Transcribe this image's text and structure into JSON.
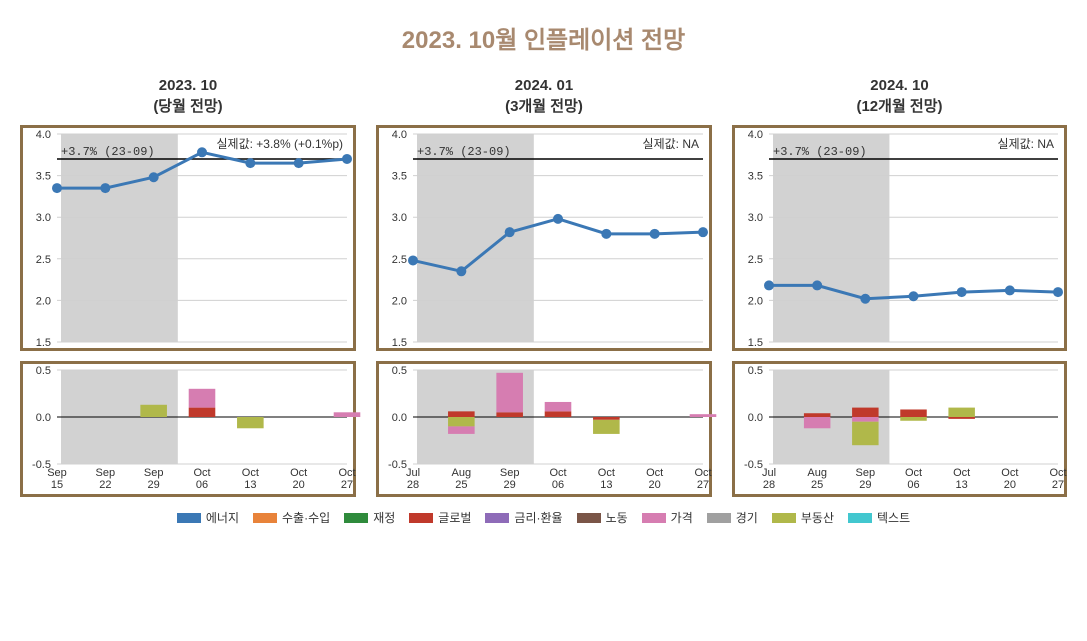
{
  "title": "2023. 10월 인플레이션 전망",
  "legend": [
    {
      "label": "에너지",
      "color": "#3b78b5"
    },
    {
      "label": "수출·수입",
      "color": "#e8833a"
    },
    {
      "label": "재정",
      "color": "#2f8b3c"
    },
    {
      "label": "글로벌",
      "color": "#c0392b"
    },
    {
      "label": "금리·환율",
      "color": "#8e6bb8"
    },
    {
      "label": "노동",
      "color": "#7a5547"
    },
    {
      "label": "가격",
      "color": "#d67db1"
    },
    {
      "label": "경기",
      "color": "#a0a0a0"
    },
    {
      "label": "부동산",
      "color": "#b0b84a"
    },
    {
      "label": "텍스트",
      "color": "#42c7cf"
    }
  ],
  "shaded_color": "#bfbfbf",
  "line_color": "#3b78b5",
  "grid_color": "#d0d0d0",
  "border_color": "#8b6f47",
  "ref_line_label": "+3.7% (23-09)",
  "ref_line_value": 3.7,
  "panels": [
    {
      "header_line1": "2023. 10",
      "header_line2": "(당월 전망)",
      "actual_label": "실제값: +3.8% (+0.1%p)",
      "x_labels": [
        "Sep\n15",
        "Sep\n22",
        "Sep\n29",
        "Oct\n06",
        "Oct\n13",
        "Oct\n20",
        "Oct\n27"
      ],
      "shaded_end_idx": 3,
      "top": {
        "ylim": [
          1.5,
          4.0
        ],
        "yticks": [
          1.5,
          2.0,
          2.5,
          3.0,
          3.5,
          4.0
        ],
        "values": [
          3.35,
          3.35,
          3.48,
          3.78,
          3.65,
          3.65,
          3.7
        ]
      },
      "bottom": {
        "ylim": [
          -0.5,
          0.5
        ],
        "yticks": [
          -0.5,
          0.0,
          0.5
        ],
        "stacks": [
          [],
          [],
          [
            {
              "c": "#b0b84a",
              "v": 0.13
            }
          ],
          [
            {
              "c": "#c0392b",
              "v": 0.1
            },
            {
              "c": "#d67db1",
              "v": 0.2
            }
          ],
          [
            {
              "c": "#b0b84a",
              "v": -0.12
            }
          ],
          [],
          [
            {
              "c": "#d67db1",
              "v": 0.05
            }
          ]
        ]
      }
    },
    {
      "header_line1": "2024. 01",
      "header_line2": "(3개월 전망)",
      "actual_label": "실제값: NA",
      "x_labels": [
        "Jul\n28",
        "Aug\n25",
        "Sep\n29",
        "Oct\n06",
        "Oct\n13",
        "Oct\n20",
        "Oct\n27"
      ],
      "shaded_end_idx": 3,
      "top": {
        "ylim": [
          1.5,
          4.0
        ],
        "yticks": [
          1.5,
          2.0,
          2.5,
          3.0,
          3.5,
          4.0
        ],
        "values": [
          2.48,
          2.35,
          2.82,
          2.98,
          2.8,
          2.8,
          2.82
        ]
      },
      "bottom": {
        "ylim": [
          -0.5,
          0.5
        ],
        "yticks": [
          -0.5,
          0.0,
          0.5
        ],
        "stacks": [
          [],
          [
            {
              "c": "#c0392b",
              "v": 0.06
            },
            {
              "c": "#b0b84a",
              "v": -0.1
            },
            {
              "c": "#d67db1",
              "v": -0.08
            }
          ],
          [
            {
              "c": "#c0392b",
              "v": 0.05
            },
            {
              "c": "#d67db1",
              "v": 0.42
            }
          ],
          [
            {
              "c": "#c0392b",
              "v": 0.06
            },
            {
              "c": "#d67db1",
              "v": 0.1
            }
          ],
          [
            {
              "c": "#c0392b",
              "v": -0.03
            },
            {
              "c": "#b0b84a",
              "v": -0.15
            }
          ],
          [],
          [
            {
              "c": "#d67db1",
              "v": 0.03
            }
          ]
        ]
      }
    },
    {
      "header_line1": "2024. 10",
      "header_line2": "(12개월 전망)",
      "actual_label": "실제값: NA",
      "x_labels": [
        "Jul\n28",
        "Aug\n25",
        "Sep\n29",
        "Oct\n06",
        "Oct\n13",
        "Oct\n20",
        "Oct\n27"
      ],
      "shaded_end_idx": 3,
      "top": {
        "ylim": [
          1.5,
          4.0
        ],
        "yticks": [
          1.5,
          2.0,
          2.5,
          3.0,
          3.5,
          4.0
        ],
        "values": [
          2.18,
          2.18,
          2.02,
          2.05,
          2.1,
          2.12,
          2.1
        ]
      },
      "bottom": {
        "ylim": [
          -0.5,
          0.5
        ],
        "yticks": [
          -0.5,
          0.0,
          0.5
        ],
        "stacks": [
          [],
          [
            {
              "c": "#c0392b",
              "v": 0.04
            },
            {
              "c": "#d67db1",
              "v": -0.12
            }
          ],
          [
            {
              "c": "#c0392b",
              "v": 0.1
            },
            {
              "c": "#d67db1",
              "v": -0.05
            },
            {
              "c": "#b0b84a",
              "v": -0.25
            }
          ],
          [
            {
              "c": "#c0392b",
              "v": 0.08
            },
            {
              "c": "#b0b84a",
              "v": -0.04
            }
          ],
          [
            {
              "c": "#b0b84a",
              "v": 0.1
            },
            {
              "c": "#c0392b",
              "v": -0.02
            }
          ],
          [],
          []
        ]
      }
    }
  ]
}
